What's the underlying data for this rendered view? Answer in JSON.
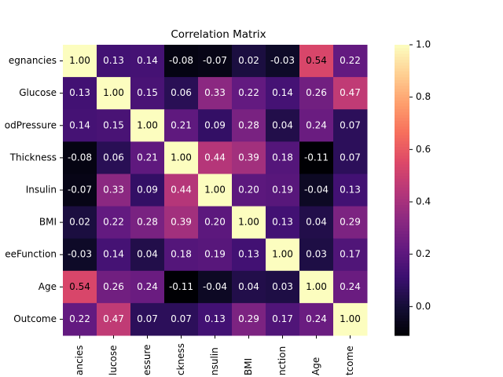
{
  "chart_data": {
    "type": "heatmap",
    "title": "Correlation Matrix",
    "x_categories": [
      "ancies",
      "lucose",
      "essure",
      "ckness",
      "nsulin",
      "BMI",
      "nction",
      "Age",
      "tcome"
    ],
    "y_categories": [
      "egnancies",
      "Glucose",
      "odPressure",
      "Thickness",
      "Insulin",
      "BMI",
      "eeFunction",
      "Age",
      "Outcome"
    ],
    "z": [
      [
        1,
        0.13,
        0.14,
        -0.08,
        -0.07,
        0.02,
        -0.03,
        0.54,
        0.22
      ],
      [
        0.13,
        1,
        0.15,
        0.06,
        0.33,
        0.22,
        0.14,
        0.26,
        0.47
      ],
      [
        0.14,
        0.15,
        1,
        0.21,
        0.09,
        0.28,
        0.04,
        0.24,
        0.07
      ],
      [
        -0.08,
        0.06,
        0.21,
        1,
        0.44,
        0.39,
        0.18,
        -0.11,
        0.07
      ],
      [
        -0.07,
        0.33,
        0.09,
        0.44,
        1,
        0.2,
        0.19,
        -0.04,
        0.13
      ],
      [
        0.02,
        0.22,
        0.28,
        0.39,
        0.2,
        1,
        0.13,
        0.04,
        0.29
      ],
      [
        -0.03,
        0.14,
        0.04,
        0.18,
        0.19,
        0.13,
        1,
        0.03,
        0.17
      ],
      [
        0.54,
        0.26,
        0.24,
        -0.11,
        -0.04,
        0.04,
        0.03,
        1,
        0.24
      ],
      [
        0.22,
        0.47,
        0.07,
        0.07,
        0.13,
        0.29,
        0.17,
        0.24,
        1
      ]
    ],
    "value_labels": [
      [
        "1.00",
        "0.13",
        "0.14",
        "-0.08",
        "-0.07",
        "0.02",
        "-0.03",
        "0.54",
        "0.22"
      ],
      [
        "0.13",
        "1.00",
        "0.15",
        "0.06",
        "0.33",
        "0.22",
        "0.14",
        "0.26",
        "0.47"
      ],
      [
        "0.14",
        "0.15",
        "1.00",
        "0.21",
        "0.09",
        "0.28",
        "0.04",
        "0.24",
        "0.07"
      ],
      [
        "-0.08",
        "0.06",
        "0.21",
        "1.00",
        "0.44",
        "0.39",
        "0.18",
        "-0.11",
        "0.07"
      ],
      [
        "-0.07",
        "0.33",
        "0.09",
        "0.44",
        "1.00",
        "0.20",
        "0.19",
        "-0.04",
        "0.13"
      ],
      [
        "0.02",
        "0.22",
        "0.28",
        "0.39",
        "0.20",
        "1.00",
        "0.13",
        "0.04",
        "0.29"
      ],
      [
        "-0.03",
        "0.14",
        "0.04",
        "0.18",
        "0.19",
        "0.13",
        "1.00",
        "0.03",
        "0.17"
      ],
      [
        "0.54",
        "0.26",
        "0.24",
        "-0.11",
        "-0.04",
        "0.04",
        "0.03",
        "1.00",
        "0.24"
      ],
      [
        "0.22",
        "0.47",
        "0.07",
        "0.07",
        "0.13",
        "0.29",
        "0.17",
        "0.24",
        "1.00"
      ]
    ],
    "colormap": "magma",
    "zlim": [
      -0.11,
      1
    ],
    "zticks": [
      {
        "value": 0,
        "label": "0.0"
      },
      {
        "value": 0.2,
        "label": "0.2"
      },
      {
        "value": 0.4,
        "label": "0.4"
      },
      {
        "value": 0.6,
        "label": "0.6"
      },
      {
        "value": 0.8,
        "label": "0.8"
      },
      {
        "value": 1,
        "label": "1.0"
      }
    ]
  }
}
